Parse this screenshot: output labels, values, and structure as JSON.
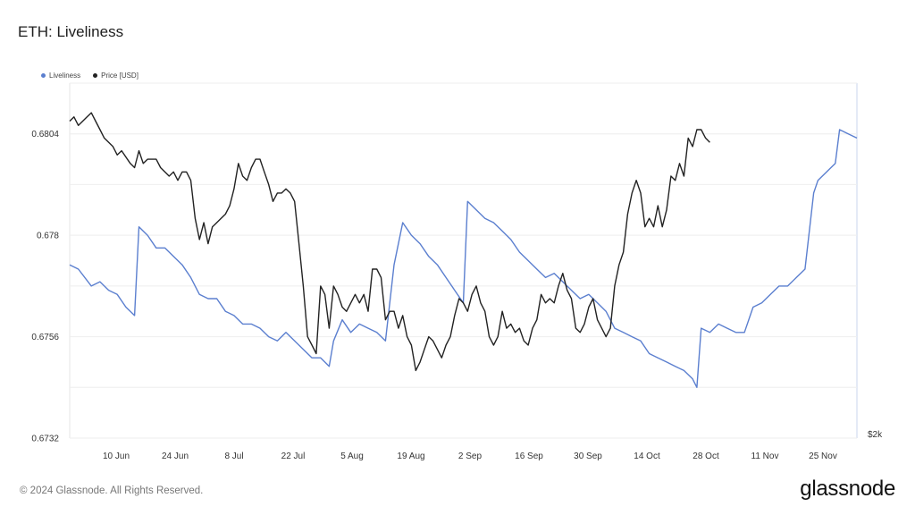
{
  "page": {
    "title": "ETH: Liveliness"
  },
  "legend": {
    "items": [
      {
        "label": "Liveliness",
        "color": "#5b7fcf"
      },
      {
        "label": "Price [USD]",
        "color": "#222222"
      }
    ]
  },
  "footer": {
    "copyright": "© 2024 Glassnode. All Rights Reserved.",
    "brand": "glassnode"
  },
  "chart_data": {
    "type": "line",
    "title": "ETH: Liveliness",
    "xlabel": "",
    "ylabel": "",
    "x_range": [
      "2024-06-01",
      "2024-12-01"
    ],
    "x_ticks": [
      "10 Jun",
      "24 Jun",
      "8 Jul",
      "22 Jul",
      "5 Aug",
      "19 Aug",
      "2 Sep",
      "16 Sep",
      "30 Sep",
      "14 Oct",
      "28 Oct",
      "11 Nov",
      "25 Nov"
    ],
    "y_left": {
      "ticks": [
        "0.6732",
        "0.6756",
        "0.678",
        "0.6804"
      ],
      "ylim": [
        0.6732,
        0.6816
      ]
    },
    "y_right": {
      "ticks": [
        "$2k"
      ]
    },
    "grid": true,
    "legend_position": "top-left",
    "series": [
      {
        "name": "Liveliness",
        "axis": "left",
        "color": "#5b7fcf",
        "values": [
          [
            0,
            0.6773
          ],
          [
            2,
            0.6772
          ],
          [
            5,
            0.6768
          ],
          [
            7,
            0.6769
          ],
          [
            9,
            0.6767
          ],
          [
            11,
            0.6766
          ],
          [
            13,
            0.6763
          ],
          [
            15,
            0.6761
          ],
          [
            16,
            0.6782
          ],
          [
            18,
            0.678
          ],
          [
            20,
            0.6777
          ],
          [
            22,
            0.6777
          ],
          [
            24,
            0.6775
          ],
          [
            26,
            0.6773
          ],
          [
            28,
            0.677
          ],
          [
            30,
            0.6766
          ],
          [
            32,
            0.6765
          ],
          [
            34,
            0.6765
          ],
          [
            36,
            0.6762
          ],
          [
            38,
            0.6761
          ],
          [
            40,
            0.6759
          ],
          [
            42,
            0.6759
          ],
          [
            44,
            0.6758
          ],
          [
            46,
            0.6756
          ],
          [
            48,
            0.6755
          ],
          [
            50,
            0.6757
          ],
          [
            52,
            0.6755
          ],
          [
            54,
            0.6753
          ],
          [
            56,
            0.6751
          ],
          [
            58,
            0.6751
          ],
          [
            60,
            0.6749
          ],
          [
            61,
            0.6755
          ],
          [
            63,
            0.676
          ],
          [
            65,
            0.6757
          ],
          [
            67,
            0.6759
          ],
          [
            69,
            0.6758
          ],
          [
            71,
            0.6757
          ],
          [
            73,
            0.6755
          ],
          [
            75,
            0.6773
          ],
          [
            77,
            0.6783
          ],
          [
            79,
            0.678
          ],
          [
            81,
            0.6778
          ],
          [
            83,
            0.6775
          ],
          [
            85,
            0.6773
          ],
          [
            87,
            0.677
          ],
          [
            89,
            0.6767
          ],
          [
            91,
            0.6764
          ],
          [
            92,
            0.6788
          ],
          [
            94,
            0.6786
          ],
          [
            96,
            0.6784
          ],
          [
            98,
            0.6783
          ],
          [
            100,
            0.6781
          ],
          [
            102,
            0.6779
          ],
          [
            104,
            0.6776
          ],
          [
            106,
            0.6774
          ],
          [
            108,
            0.6772
          ],
          [
            110,
            0.677
          ],
          [
            112,
            0.6771
          ],
          [
            114,
            0.6769
          ],
          [
            116,
            0.6767
          ],
          [
            118,
            0.6765
          ],
          [
            120,
            0.6766
          ],
          [
            122,
            0.6764
          ],
          [
            124,
            0.6762
          ],
          [
            126,
            0.6758
          ],
          [
            128,
            0.6757
          ],
          [
            130,
            0.6756
          ],
          [
            132,
            0.6755
          ],
          [
            134,
            0.6752
          ],
          [
            136,
            0.6751
          ],
          [
            138,
            0.675
          ],
          [
            140,
            0.6749
          ],
          [
            142,
            0.6748
          ],
          [
            144,
            0.6746
          ],
          [
            145,
            0.6744
          ],
          [
            146,
            0.6758
          ],
          [
            148,
            0.6757
          ],
          [
            150,
            0.6759
          ],
          [
            152,
            0.6758
          ],
          [
            154,
            0.6757
          ],
          [
            156,
            0.6757
          ],
          [
            158,
            0.6763
          ],
          [
            160,
            0.6764
          ],
          [
            162,
            0.6766
          ],
          [
            164,
            0.6768
          ],
          [
            166,
            0.6768
          ],
          [
            168,
            0.677
          ],
          [
            170,
            0.6772
          ],
          [
            172,
            0.679
          ],
          [
            173,
            0.6793
          ],
          [
            175,
            0.6795
          ],
          [
            177,
            0.6797
          ],
          [
            178,
            0.6805
          ],
          [
            180,
            0.6804
          ],
          [
            182,
            0.6803
          ]
        ]
      },
      {
        "name": "Price [USD]",
        "axis": "right",
        "color": "#222222",
        "values": [
          [
            0,
            0.6807
          ],
          [
            1,
            0.6808
          ],
          [
            2,
            0.6806
          ],
          [
            4,
            0.6808
          ],
          [
            5,
            0.6809
          ],
          [
            6,
            0.6807
          ],
          [
            7,
            0.6805
          ],
          [
            8,
            0.6803
          ],
          [
            10,
            0.6801
          ],
          [
            11,
            0.6799
          ],
          [
            12,
            0.68
          ],
          [
            14,
            0.6797
          ],
          [
            15,
            0.6796
          ],
          [
            16,
            0.68
          ],
          [
            17,
            0.6797
          ],
          [
            18,
            0.6798
          ],
          [
            20,
            0.6798
          ],
          [
            21,
            0.6796
          ],
          [
            22,
            0.6795
          ],
          [
            23,
            0.6794
          ],
          [
            24,
            0.6795
          ],
          [
            25,
            0.6793
          ],
          [
            26,
            0.6795
          ],
          [
            27,
            0.6795
          ],
          [
            28,
            0.6793
          ],
          [
            29,
            0.6784
          ],
          [
            30,
            0.6779
          ],
          [
            31,
            0.6783
          ],
          [
            32,
            0.6778
          ],
          [
            33,
            0.6782
          ],
          [
            34,
            0.6783
          ],
          [
            35,
            0.6784
          ],
          [
            36,
            0.6785
          ],
          [
            37,
            0.6787
          ],
          [
            38,
            0.6791
          ],
          [
            39,
            0.6797
          ],
          [
            40,
            0.6794
          ],
          [
            41,
            0.6793
          ],
          [
            42,
            0.6796
          ],
          [
            43,
            0.6798
          ],
          [
            44,
            0.6798
          ],
          [
            45,
            0.6795
          ],
          [
            46,
            0.6792
          ],
          [
            47,
            0.6788
          ],
          [
            48,
            0.679
          ],
          [
            49,
            0.679
          ],
          [
            50,
            0.6791
          ],
          [
            51,
            0.679
          ],
          [
            52,
            0.6788
          ],
          [
            53,
            0.6778
          ],
          [
            54,
            0.6768
          ],
          [
            55,
            0.6756
          ],
          [
            56,
            0.6754
          ],
          [
            57,
            0.6752
          ],
          [
            58,
            0.6768
          ],
          [
            59,
            0.6766
          ],
          [
            60,
            0.6758
          ],
          [
            61,
            0.6768
          ],
          [
            62,
            0.6766
          ],
          [
            63,
            0.6763
          ],
          [
            64,
            0.6762
          ],
          [
            65,
            0.6764
          ],
          [
            66,
            0.6766
          ],
          [
            67,
            0.6764
          ],
          [
            68,
            0.6766
          ],
          [
            69,
            0.6762
          ],
          [
            70,
            0.6772
          ],
          [
            71,
            0.6772
          ],
          [
            72,
            0.677
          ],
          [
            73,
            0.676
          ],
          [
            74,
            0.6762
          ],
          [
            75,
            0.6762
          ],
          [
            76,
            0.6758
          ],
          [
            77,
            0.6761
          ],
          [
            78,
            0.6756
          ],
          [
            79,
            0.6754
          ],
          [
            80,
            0.6748
          ],
          [
            81,
            0.675
          ],
          [
            82,
            0.6753
          ],
          [
            83,
            0.6756
          ],
          [
            84,
            0.6755
          ],
          [
            85,
            0.6753
          ],
          [
            86,
            0.6751
          ],
          [
            87,
            0.6754
          ],
          [
            88,
            0.6756
          ],
          [
            89,
            0.6761
          ],
          [
            90,
            0.6765
          ],
          [
            91,
            0.6764
          ],
          [
            92,
            0.6762
          ],
          [
            93,
            0.6766
          ],
          [
            94,
            0.6768
          ],
          [
            95,
            0.6764
          ],
          [
            96,
            0.6762
          ],
          [
            97,
            0.6756
          ],
          [
            98,
            0.6754
          ],
          [
            99,
            0.6756
          ],
          [
            100,
            0.6762
          ],
          [
            101,
            0.6758
          ],
          [
            102,
            0.6759
          ],
          [
            103,
            0.6757
          ],
          [
            104,
            0.6758
          ],
          [
            105,
            0.6755
          ],
          [
            106,
            0.6754
          ],
          [
            107,
            0.6758
          ],
          [
            108,
            0.676
          ],
          [
            109,
            0.6766
          ],
          [
            110,
            0.6764
          ],
          [
            111,
            0.6765
          ],
          [
            112,
            0.6764
          ],
          [
            113,
            0.6768
          ],
          [
            114,
            0.6771
          ],
          [
            115,
            0.6767
          ],
          [
            116,
            0.6765
          ],
          [
            117,
            0.6758
          ],
          [
            118,
            0.6757
          ],
          [
            119,
            0.6759
          ],
          [
            120,
            0.6763
          ],
          [
            121,
            0.6765
          ],
          [
            122,
            0.676
          ],
          [
            123,
            0.6758
          ],
          [
            124,
            0.6756
          ],
          [
            125,
            0.6758
          ],
          [
            126,
            0.6768
          ],
          [
            127,
            0.6773
          ],
          [
            128,
            0.6776
          ],
          [
            129,
            0.6785
          ],
          [
            130,
            0.679
          ],
          [
            131,
            0.6793
          ],
          [
            132,
            0.679
          ],
          [
            133,
            0.6782
          ],
          [
            134,
            0.6784
          ],
          [
            135,
            0.6782
          ],
          [
            136,
            0.6787
          ],
          [
            137,
            0.6782
          ],
          [
            138,
            0.6786
          ],
          [
            139,
            0.6794
          ],
          [
            140,
            0.6793
          ],
          [
            141,
            0.6797
          ],
          [
            142,
            0.6794
          ],
          [
            143,
            0.6803
          ],
          [
            144,
            0.6801
          ],
          [
            145,
            0.6805
          ],
          [
            146,
            0.6805
          ],
          [
            147,
            0.6803
          ],
          [
            148,
            0.6802
          ]
        ]
      }
    ]
  }
}
